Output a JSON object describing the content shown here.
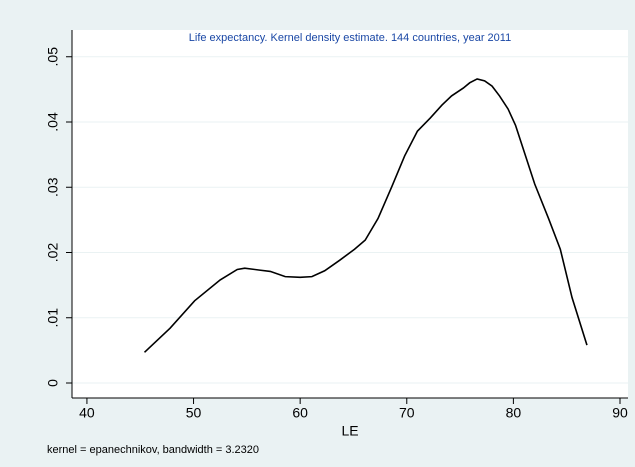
{
  "chart_data": {
    "type": "line",
    "title": "Life expectancy. Kernel density estimate. 144 countries, year 2011",
    "x_label": "LE",
    "note": "kernel = epanechnikov, bandwidth = 3.2320",
    "x": [
      45.4,
      47.8,
      50.1,
      52.5,
      54.1,
      54.8,
      56.2,
      57.2,
      58.6,
      60.0,
      61.1,
      62.3,
      63.7,
      65.1,
      66.1,
      67.3,
      68.6,
      69.8,
      71.0,
      72.2,
      73.3,
      74.2,
      75.3,
      75.9,
      76.6,
      77.3,
      78.0,
      78.7,
      79.5,
      80.2,
      81.1,
      82.0,
      83.3,
      84.4,
      85.5,
      86.9
    ],
    "series": [
      {
        "color": "#000000",
        "values": [
          0.0047,
          0.0084,
          0.0126,
          0.0158,
          0.0174,
          0.0176,
          0.0173,
          0.0171,
          0.0163,
          0.0162,
          0.0163,
          0.0172,
          0.0188,
          0.0205,
          0.0219,
          0.0252,
          0.0301,
          0.0348,
          0.0386,
          0.0406,
          0.0426,
          0.044,
          0.0452,
          0.046,
          0.0466,
          0.0463,
          0.0455,
          0.044,
          0.042,
          0.0395,
          0.035,
          0.0305,
          0.0252,
          0.0205,
          0.0131,
          0.0058
        ]
      }
    ],
    "xlim": [
      38.6,
      90.75
    ],
    "xticks": [
      40,
      50,
      60,
      70,
      80,
      90
    ],
    "ylim": [
      -0.0023,
      0.0541
    ],
    "yticks": [
      0,
      {
        "value": 0.01,
        "label": ".01"
      },
      {
        "value": 0.02,
        "label": ".02"
      },
      {
        "value": 0.03,
        "label": ".03"
      },
      {
        "value": 0.04,
        "label": ".04"
      },
      {
        "value": 0.05,
        "label": ".05"
      }
    ],
    "grid": true,
    "title_color": "#1a47a5"
  }
}
